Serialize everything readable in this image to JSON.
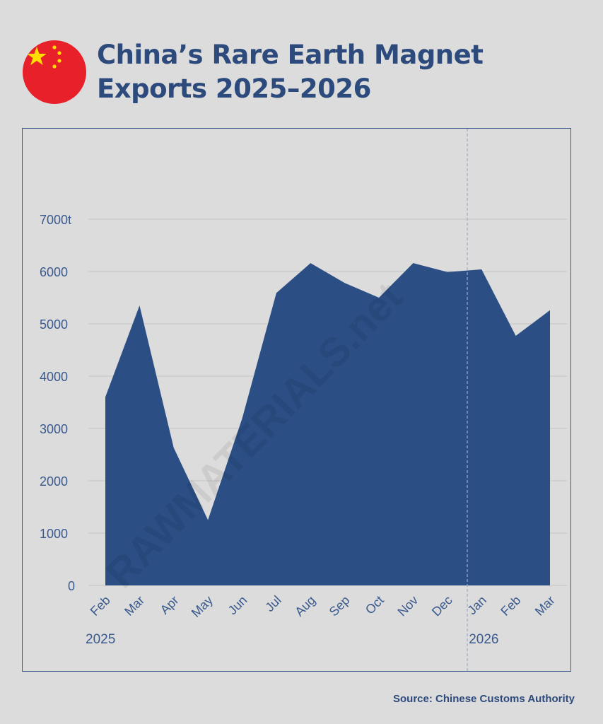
{
  "title_line1": "China’s Rare Earth Magnet",
  "title_line2": "Exports 2025–2026",
  "source": "Source: Chinese Customs Authority",
  "watermark": "RAWMATERIALS.net",
  "colors": {
    "background": "#dcdcdc",
    "area": "#2b4e84",
    "title": "#2d4a7c",
    "flag_red": "#e8202a",
    "flag_star": "#ffde00"
  },
  "chart_data": {
    "type": "area",
    "title": "China’s Rare Earth Magnet Exports 2025–2026",
    "xlabel": "",
    "ylabel": "",
    "categories": [
      "Feb",
      "Mar",
      "Apr",
      "May",
      "Jun",
      "Jul",
      "Aug",
      "Sep",
      "Oct",
      "Nov",
      "Dec",
      "Jan",
      "Feb",
      "Mar"
    ],
    "year_labels": [
      {
        "label": "2025",
        "start_index": 0
      },
      {
        "label": "2026",
        "start_index": 11
      }
    ],
    "values": [
      3600,
      5350,
      2630,
      1250,
      3190,
      5590,
      6160,
      5780,
      5500,
      6160,
      5990,
      6040,
      4770,
      5260
    ],
    "unit": "t",
    "ylim": [
      0,
      7000
    ],
    "yticks": [
      0,
      1000,
      2000,
      3000,
      4000,
      5000,
      6000,
      7000
    ],
    "ytick_labels": [
      "0",
      "1000",
      "2000",
      "3000",
      "4000",
      "5000",
      "6000",
      "7000t"
    ],
    "grid": true,
    "year_divider_between": [
      "Dec",
      "Jan"
    ]
  }
}
